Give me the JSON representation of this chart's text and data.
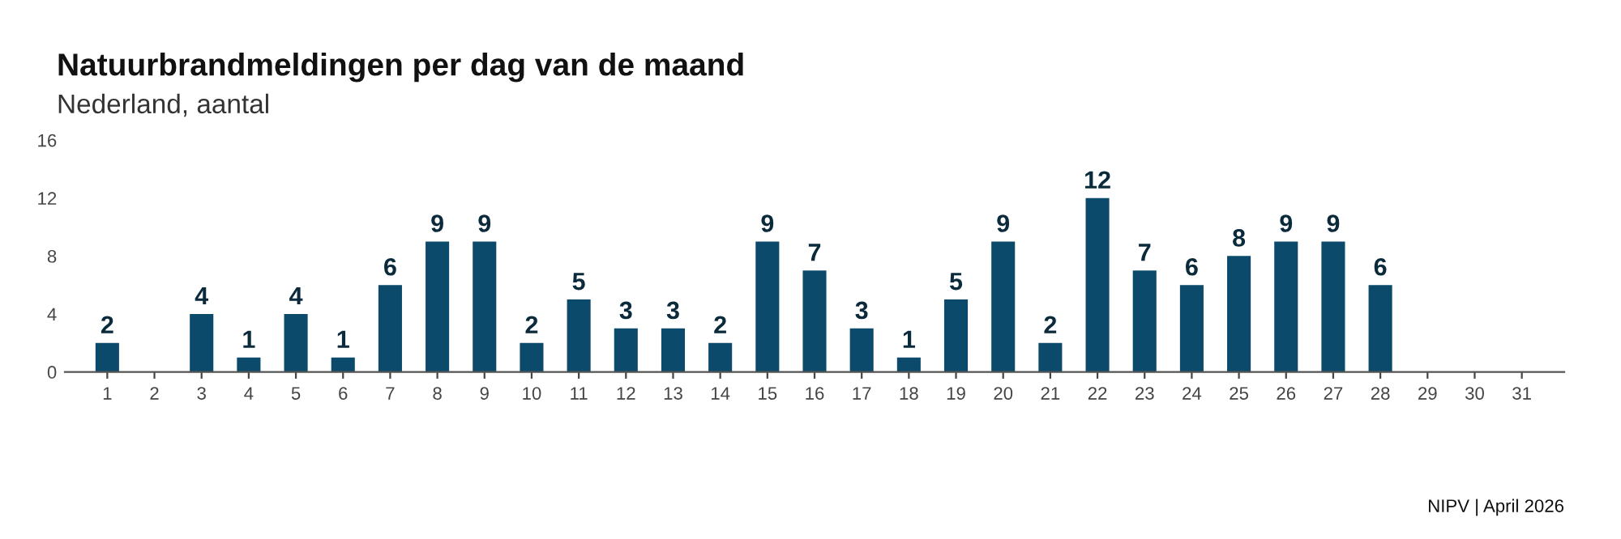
{
  "chart_data": {
    "type": "bar",
    "title": "Natuurbrandmeldingen per dag van de maand",
    "subtitle": "Nederland, aantal",
    "categories": [
      "1",
      "2",
      "3",
      "4",
      "5",
      "6",
      "7",
      "8",
      "9",
      "10",
      "11",
      "12",
      "13",
      "14",
      "15",
      "16",
      "17",
      "18",
      "19",
      "20",
      "21",
      "22",
      "23",
      "24",
      "25",
      "26",
      "27",
      "28",
      "29",
      "30",
      "31"
    ],
    "values": [
      2,
      null,
      4,
      1,
      4,
      1,
      6,
      9,
      9,
      2,
      5,
      3,
      3,
      2,
      9,
      7,
      3,
      1,
      5,
      9,
      2,
      12,
      7,
      6,
      8,
      9,
      9,
      6,
      null,
      null,
      null
    ],
    "color": "#0b4a6b",
    "ylim": [
      0,
      16
    ],
    "yticks": [
      0,
      4,
      8,
      12,
      16
    ],
    "grid": false,
    "data_labels": true,
    "annotations": [
      "NIPV | April 2026"
    ]
  }
}
